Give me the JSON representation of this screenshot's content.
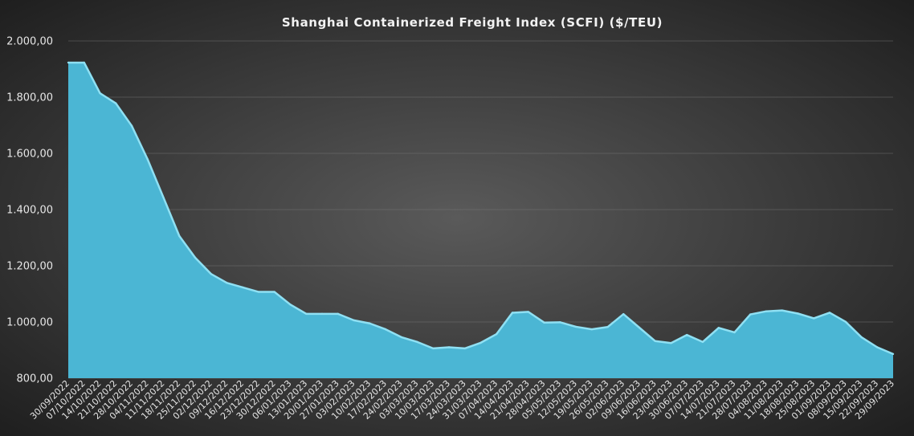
{
  "chart_data": {
    "type": "area",
    "title": "Shanghai  Containerized Freight Index  (SCFI) ($/TEU)",
    "xlabel": "",
    "ylabel": "",
    "ylim": [
      800,
      2000
    ],
    "yticks": [
      "800,00",
      "1.000,00",
      "1.200,00",
      "1.400,00",
      "1.600,00",
      "1.800,00",
      "2.000,00"
    ],
    "grid": "horizontal",
    "legend": "none",
    "colors": {
      "fill": "#4bb6d4",
      "line": "#8fe0f3",
      "background_center": "#5a5a5a",
      "background_edge": "#1f1f1f",
      "grid": "#7a7a7a"
    },
    "categories": [
      "30/09/2022",
      "07/10/2022",
      "14/10/2022",
      "21/10/2022",
      "28/10/2022",
      "04/11/2022",
      "11/11/2022",
      "18/11/2022",
      "25/11/2022",
      "02/12/2022",
      "09/12/2022",
      "16/12/2022",
      "23/12/2022",
      "30/12/2022",
      "06/01/2023",
      "13/01/2023",
      "20/01/2023",
      "27/01/2023",
      "03/02/2023",
      "10/02/2023",
      "17/02/2023",
      "24/02/2023",
      "03/03/2023",
      "10/03/2023",
      "17/03/2023",
      "24/03/2023",
      "31/03/2023",
      "07/04/2023",
      "14/04/2023",
      "21/04/2023",
      "28/04/2023",
      "05/05/2023",
      "12/05/2023",
      "19/05/2023",
      "26/05/2023",
      "02/06/2023",
      "09/06/2023",
      "16/06/2023",
      "23/06/2023",
      "30/06/2023",
      "07/07/2023",
      "14/07/2023",
      "21/07/2023",
      "28/07/2023",
      "04/08/2023",
      "11/08/2023",
      "18/08/2023",
      "25/08/2023",
      "01/09/2023",
      "08/09/2023",
      "15/09/2023",
      "22/09/2023",
      "29/09/2023"
    ],
    "values": [
      1923,
      1923,
      1814,
      1778,
      1698,
      1579,
      1443,
      1306,
      1229,
      1171,
      1139,
      1123,
      1107,
      1107,
      1062,
      1029,
      1029,
      1029,
      1006,
      995,
      974,
      946,
      929,
      906,
      910,
      906,
      926,
      957,
      1033,
      1036,
      998,
      999,
      983,
      974,
      982,
      1028,
      980,
      932,
      925,
      954,
      929,
      979,
      963,
      1027,
      1038,
      1041,
      1030,
      1013,
      1033,
      1001,
      946,
      910,
      886
    ]
  }
}
